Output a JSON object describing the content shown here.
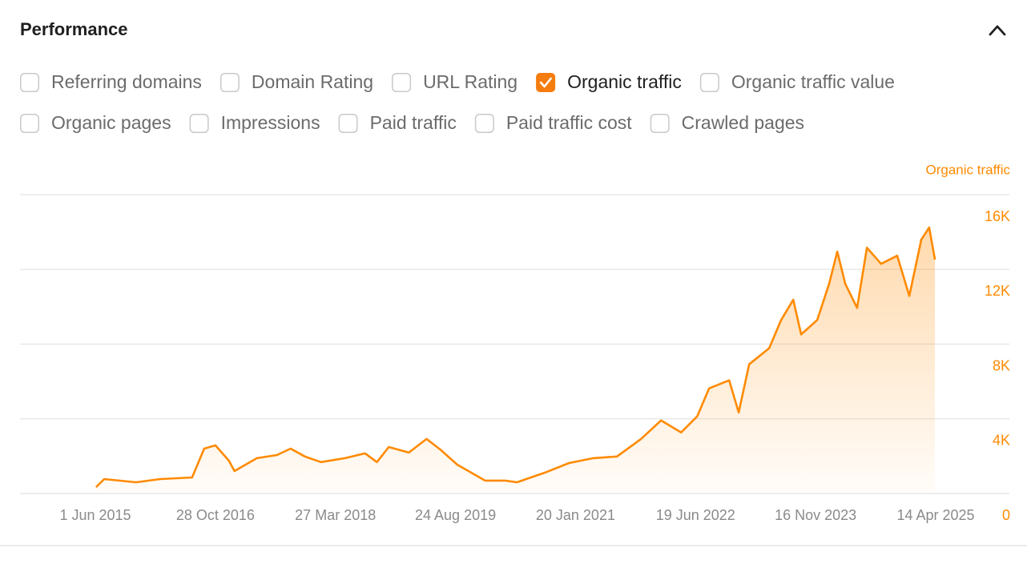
{
  "header": {
    "title": "Performance"
  },
  "filters": [
    {
      "label": "Referring domains",
      "checked": false
    },
    {
      "label": "Domain Rating",
      "checked": false
    },
    {
      "label": "URL Rating",
      "checked": false
    },
    {
      "label": "Organic traffic",
      "checked": true
    },
    {
      "label": "Organic traffic value",
      "checked": false
    },
    {
      "label": "Organic pages",
      "checked": false
    },
    {
      "label": "Impressions",
      "checked": false
    },
    {
      "label": "Paid traffic",
      "checked": false
    },
    {
      "label": "Paid traffic cost",
      "checked": false
    },
    {
      "label": "Crawled pages",
      "checked": false
    }
  ],
  "chart_data": {
    "type": "area",
    "x": [
      "2015-06-04",
      "2015-07-09",
      "2015-11-23",
      "2016-03-05",
      "2016-07-20",
      "2016-09-10",
      "2016-10-28",
      "2016-12-25",
      "2017-01-18",
      "2017-04-24",
      "2017-07-19",
      "2017-09-16",
      "2017-11-16",
      "2018-01-24",
      "2018-05-07",
      "2018-08-01",
      "2018-09-21",
      "2018-11-11",
      "2019-02-05",
      "2019-04-22",
      "2019-06-23",
      "2019-08-31",
      "2019-12-29",
      "2020-03-24",
      "2020-05-14",
      "2020-09-11",
      "2020-12-23",
      "2021-04-06",
      "2021-07-17",
      "2021-10-28",
      "2022-01-22",
      "2022-04-18",
      "2022-06-26",
      "2022-08-16",
      "2022-11-10",
      "2022-12-21",
      "2023-02-04",
      "2023-05-01",
      "2023-06-21",
      "2023-08-12",
      "2023-09-15",
      "2023-11-23",
      "2024-01-13",
      "2024-02-17",
      "2024-03-22",
      "2024-05-12",
      "2024-06-23",
      "2024-08-23",
      "2024-10-31",
      "2024-12-22",
      "2025-02-11",
      "2025-03-17",
      "2025-04-11"
    ],
    "series": [
      {
        "name": "Organic traffic",
        "color": "#ff8a00",
        "values": [
          340,
          770,
          600,
          770,
          860,
          2400,
          2580,
          1760,
          1200,
          1890,
          2060,
          2400,
          1980,
          1680,
          1890,
          2150,
          1680,
          2490,
          2190,
          2920,
          2320,
          1550,
          690,
          690,
          600,
          1120,
          1630,
          1890,
          1980,
          2920,
          3910,
          3270,
          4130,
          5630,
          6060,
          4340,
          6920,
          7780,
          9290,
          10370,
          8520,
          9290,
          11230,
          12950,
          11230,
          9940,
          13160,
          12300,
          12730,
          10580,
          13590,
          14240,
          12520
        ]
      }
    ],
    "xlim": [
      "2015-06-01",
      "2025-04-14"
    ],
    "xticks": [
      {
        "value": "2015-06-01",
        "label": "1 Jun 2015"
      },
      {
        "value": "2016-10-28",
        "label": "28 Oct 2016"
      },
      {
        "value": "2018-03-27",
        "label": "27 Mar 2018"
      },
      {
        "value": "2019-08-24",
        "label": "24 Aug 2019"
      },
      {
        "value": "2021-01-20",
        "label": "20 Jan 2021"
      },
      {
        "value": "2022-06-19",
        "label": "19 Jun 2022"
      },
      {
        "value": "2023-11-16",
        "label": "16 Nov 2023"
      },
      {
        "value": "2025-04-14",
        "label": "14 Apr 2025"
      }
    ],
    "ylim": [
      0,
      16000
    ],
    "yticks": [
      0,
      {
        "value": 4000,
        "label": "4K"
      },
      {
        "value": 8000,
        "label": "8K"
      },
      {
        "value": 12000,
        "label": "12K"
      },
      {
        "value": 16000,
        "label": "16K"
      }
    ],
    "grid": true
  }
}
